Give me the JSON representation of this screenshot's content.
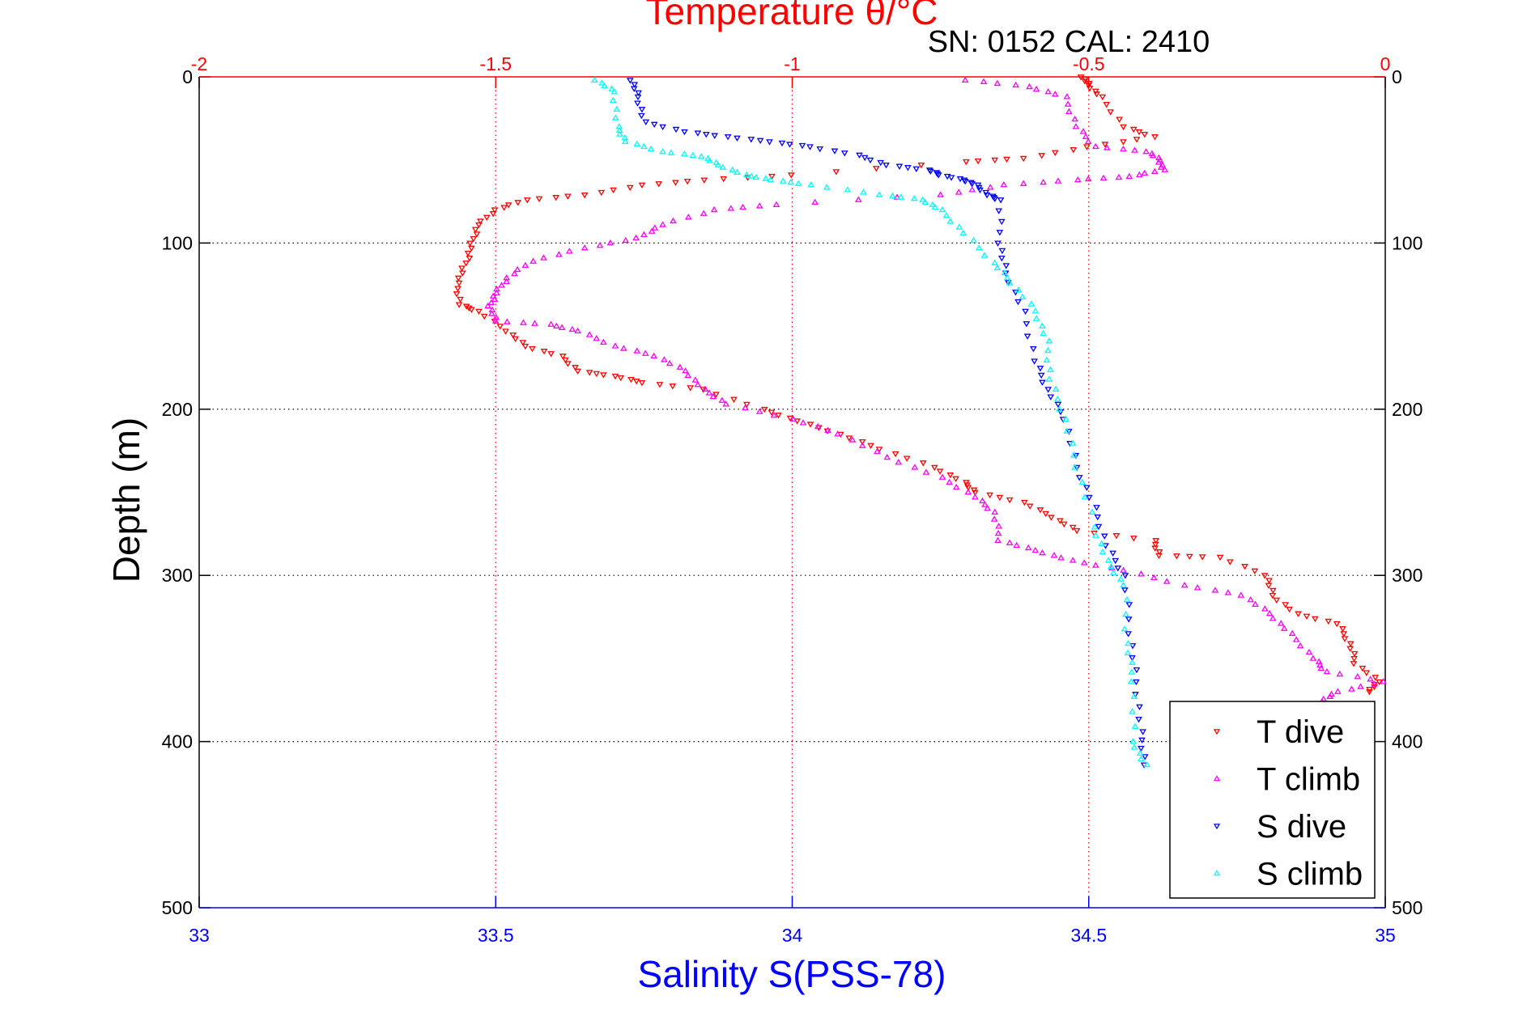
{
  "chart_data": {
    "type": "scatter",
    "title": "Temperature θ/°C",
    "subtitle": "SN: 0152  CAL: 2410",
    "xlabel": "Salinity S(PSS-78)",
    "ylabel": "Depth (m)",
    "x_bottom": {
      "label": "Salinity S(PSS-78)",
      "range": [
        33,
        35
      ],
      "ticks": [
        "33",
        "33.5",
        "34",
        "34.5",
        "35"
      ],
      "tick_values": [
        33,
        33.5,
        34,
        34.5,
        35
      ],
      "color": "#0000ff"
    },
    "x_top": {
      "label": "Temperature θ/°C",
      "range": [
        -2,
        0
      ],
      "ticks": [
        "-2",
        "-1.5",
        "-1",
        "-0.5",
        "0"
      ],
      "tick_values": [
        -2,
        -1.5,
        -1,
        -0.5,
        0
      ],
      "color": "#ff0000"
    },
    "y": {
      "range": [
        0,
        500
      ],
      "reversed": true,
      "ticks": [
        "0",
        "100",
        "200",
        "300",
        "400",
        "500"
      ],
      "tick_values": [
        0,
        100,
        200,
        300,
        400,
        500
      ]
    },
    "grid": true,
    "legend_position": "bottom-right",
    "series": [
      {
        "name": "T dive",
        "axis": "top",
        "marker": "triangle-down",
        "color": "#ff0000",
        "points": [
          [
            0,
            -0.51
          ],
          [
            5,
            -0.5
          ],
          [
            12,
            -0.48
          ],
          [
            30,
            -0.44
          ],
          [
            36,
            -0.39
          ],
          [
            42,
            -0.5
          ],
          [
            49,
            -0.61
          ],
          [
            51,
            -0.71
          ],
          [
            59,
            -1.0
          ],
          [
            62,
            -1.15
          ],
          [
            65,
            -1.25
          ],
          [
            71,
            -1.35
          ],
          [
            74,
            -1.45
          ],
          [
            80,
            -1.5
          ],
          [
            89,
            -1.53
          ],
          [
            100,
            -1.54
          ],
          [
            112,
            -1.55
          ],
          [
            124,
            -1.565
          ],
          [
            137,
            -1.56
          ],
          [
            141,
            -1.53
          ],
          [
            153,
            -1.48
          ],
          [
            162,
            -1.45
          ],
          [
            168,
            -1.39
          ],
          [
            177,
            -1.36
          ],
          [
            180,
            -1.3
          ],
          [
            184,
            -1.25
          ],
          [
            188,
            -1.15
          ],
          [
            200,
            -1.05
          ],
          [
            207,
            -0.99
          ],
          [
            215,
            -0.92
          ],
          [
            224,
            -0.85
          ],
          [
            235,
            -0.76
          ],
          [
            244,
            -0.71
          ],
          [
            250,
            -0.69
          ],
          [
            256,
            -0.61
          ],
          [
            265,
            -0.56
          ],
          [
            273,
            -0.52
          ],
          [
            279,
            -0.39
          ],
          [
            288,
            -0.38
          ],
          [
            289,
            -0.28
          ],
          [
            300,
            -0.2
          ],
          [
            312,
            -0.19
          ],
          [
            323,
            -0.15
          ],
          [
            329,
            -0.08
          ],
          [
            341,
            -0.06
          ],
          [
            353,
            -0.05
          ],
          [
            364,
            -0.01
          ],
          [
            370,
            -0.03
          ]
        ]
      },
      {
        "name": "T climb",
        "axis": "top",
        "marker": "triangle-up",
        "color": "#ff00ff",
        "points": [
          [
            2,
            -0.705
          ],
          [
            6,
            -0.6
          ],
          [
            12,
            -0.54
          ],
          [
            30,
            -0.52
          ],
          [
            42,
            -0.49
          ],
          [
            45,
            -0.4
          ],
          [
            50,
            -0.38
          ],
          [
            56,
            -0.375
          ],
          [
            60,
            -0.43
          ],
          [
            62,
            -0.52
          ],
          [
            65,
            -0.64
          ],
          [
            71,
            -0.75
          ],
          [
            77,
            -1.03
          ],
          [
            80,
            -1.13
          ],
          [
            89,
            -1.22
          ],
          [
            97,
            -1.26
          ],
          [
            103,
            -1.35
          ],
          [
            111,
            -1.44
          ],
          [
            121,
            -1.48
          ],
          [
            130,
            -1.5
          ],
          [
            138,
            -1.51
          ],
          [
            147,
            -1.5
          ],
          [
            149,
            -1.41
          ],
          [
            153,
            -1.36
          ],
          [
            162,
            -1.3
          ],
          [
            168,
            -1.23
          ],
          [
            177,
            -1.18
          ],
          [
            188,
            -1.15
          ],
          [
            197,
            -1.11
          ],
          [
            206,
            -1.0
          ],
          [
            215,
            -0.92
          ],
          [
            229,
            -0.84
          ],
          [
            241,
            -0.75
          ],
          [
            253,
            -0.69
          ],
          [
            262,
            -0.66
          ],
          [
            279,
            -0.65
          ],
          [
            285,
            -0.59
          ],
          [
            291,
            -0.53
          ],
          [
            297,
            -0.44
          ],
          [
            306,
            -0.34
          ],
          [
            312,
            -0.24
          ],
          [
            323,
            -0.195
          ],
          [
            335,
            -0.16
          ],
          [
            350,
            -0.12
          ],
          [
            358,
            -0.1
          ],
          [
            364,
            0.0
          ],
          [
            370,
            -0.08
          ],
          [
            376,
            -0.11
          ]
        ]
      },
      {
        "name": "S dive",
        "axis": "bottom",
        "marker": "triangle-down",
        "color": "#0000ff",
        "points": [
          [
            2,
            33.73
          ],
          [
            12,
            33.74
          ],
          [
            27,
            33.75
          ],
          [
            33,
            33.82
          ],
          [
            36,
            33.89
          ],
          [
            39,
            33.965
          ],
          [
            42,
            34.03
          ],
          [
            47,
            34.11
          ],
          [
            53,
            34.16
          ],
          [
            56,
            34.23
          ],
          [
            59,
            34.25
          ],
          [
            62,
            34.29
          ],
          [
            65,
            34.31
          ],
          [
            71,
            34.33
          ],
          [
            74,
            34.35
          ],
          [
            100,
            34.35
          ],
          [
            118,
            34.36
          ],
          [
            141,
            34.39
          ],
          [
            171,
            34.41
          ],
          [
            188,
            34.43
          ],
          [
            206,
            34.46
          ],
          [
            235,
            34.48
          ],
          [
            259,
            34.51
          ],
          [
            282,
            34.53
          ],
          [
            300,
            34.56
          ],
          [
            335,
            34.57
          ],
          [
            364,
            34.58
          ],
          [
            394,
            34.588
          ],
          [
            414,
            34.595
          ]
        ]
      },
      {
        "name": "S climb",
        "axis": "bottom",
        "marker": "triangle-up",
        "color": "#00ffff",
        "points": [
          [
            2,
            33.67
          ],
          [
            9,
            33.7
          ],
          [
            30,
            33.705
          ],
          [
            39,
            33.72
          ],
          [
            45,
            33.78
          ],
          [
            48,
            33.85
          ],
          [
            53,
            33.875
          ],
          [
            59,
            33.92
          ],
          [
            62,
            33.965
          ],
          [
            65,
            34.03
          ],
          [
            71,
            34.15
          ],
          [
            74,
            34.22
          ],
          [
            80,
            34.25
          ],
          [
            94,
            34.29
          ],
          [
            112,
            34.34
          ],
          [
            124,
            34.37
          ],
          [
            141,
            34.41
          ],
          [
            159,
            34.43
          ],
          [
            182,
            34.435
          ],
          [
            206,
            34.46
          ],
          [
            235,
            34.48
          ],
          [
            271,
            34.51
          ],
          [
            291,
            34.53
          ],
          [
            306,
            34.56
          ],
          [
            341,
            34.565
          ],
          [
            364,
            34.575
          ],
          [
            400,
            34.575
          ],
          [
            414,
            34.595
          ]
        ]
      }
    ]
  }
}
